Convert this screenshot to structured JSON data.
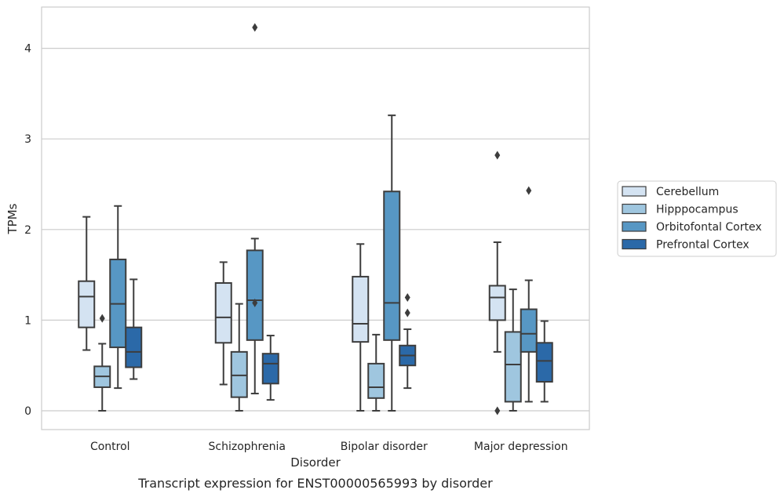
{
  "chart_data": {
    "type": "box",
    "title": "",
    "caption": "Transcript expression for ENST00000565993 by disorder",
    "xlabel": "Disorder",
    "ylabel": "TPMs",
    "ylim": [
      -0.2,
      4.45
    ],
    "yticks": [
      0,
      1,
      2,
      3,
      4
    ],
    "grid": "horizontal",
    "legend_position": "right",
    "categories": [
      "Control",
      "Schizophrenia",
      "Bipolar disorder",
      "Major depression"
    ],
    "series": [
      {
        "name": "Cerebellum",
        "color": "#d4e3f2",
        "boxes": [
          {
            "whisker_low": 0.67,
            "q1": 0.92,
            "median": 1.26,
            "q3": 1.43,
            "whisker_high": 2.14,
            "outliers": []
          },
          {
            "whisker_low": 0.29,
            "q1": 0.75,
            "median": 1.03,
            "q3": 1.41,
            "whisker_high": 1.64,
            "outliers": []
          },
          {
            "whisker_low": 0.0,
            "q1": 0.76,
            "median": 0.96,
            "q3": 1.48,
            "whisker_high": 1.84,
            "outliers": []
          },
          {
            "whisker_low": 0.65,
            "q1": 1.0,
            "median": 1.25,
            "q3": 1.38,
            "whisker_high": 1.86,
            "outliers": [
              2.82,
              0.0
            ]
          }
        ]
      },
      {
        "name": "Hipppocampus",
        "color": "#9fc6df",
        "boxes": [
          {
            "whisker_low": 0.0,
            "q1": 0.26,
            "median": 0.38,
            "q3": 0.49,
            "whisker_high": 0.74,
            "outliers": [
              1.02
            ]
          },
          {
            "whisker_low": 0.0,
            "q1": 0.15,
            "median": 0.39,
            "q3": 0.65,
            "whisker_high": 1.18,
            "outliers": []
          },
          {
            "whisker_low": 0.0,
            "q1": 0.14,
            "median": 0.26,
            "q3": 0.52,
            "whisker_high": 0.84,
            "outliers": []
          },
          {
            "whisker_low": 0.0,
            "q1": 0.1,
            "median": 0.51,
            "q3": 0.87,
            "whisker_high": 1.34,
            "outliers": []
          }
        ]
      },
      {
        "name": "Orbitofontal Cortex",
        "color": "#5797c4",
        "boxes": [
          {
            "whisker_low": 0.25,
            "q1": 0.7,
            "median": 1.18,
            "q3": 1.67,
            "whisker_high": 2.26,
            "outliers": []
          },
          {
            "whisker_low": 0.19,
            "q1": 0.78,
            "median": 1.22,
            "q3": 1.77,
            "whisker_high": 1.9,
            "outliers": [
              4.23,
              1.19
            ]
          },
          {
            "whisker_low": 0.0,
            "q1": 0.78,
            "median": 1.19,
            "q3": 2.42,
            "whisker_high": 3.26,
            "outliers": []
          },
          {
            "whisker_low": 0.1,
            "q1": 0.65,
            "median": 0.85,
            "q3": 1.12,
            "whisker_high": 1.44,
            "outliers": [
              2.43
            ]
          }
        ]
      },
      {
        "name": "Prefrontal Cortex",
        "color": "#2b69a8",
        "boxes": [
          {
            "whisker_low": 0.35,
            "q1": 0.48,
            "median": 0.65,
            "q3": 0.92,
            "whisker_high": 1.45,
            "outliers": []
          },
          {
            "whisker_low": 0.12,
            "q1": 0.3,
            "median": 0.52,
            "q3": 0.63,
            "whisker_high": 0.83,
            "outliers": []
          },
          {
            "whisker_low": 0.25,
            "q1": 0.5,
            "median": 0.61,
            "q3": 0.72,
            "whisker_high": 0.9,
            "outliers": [
              1.25,
              1.08
            ]
          },
          {
            "whisker_low": 0.1,
            "q1": 0.32,
            "median": 0.55,
            "q3": 0.75,
            "whisker_high": 0.99,
            "outliers": []
          }
        ]
      }
    ]
  }
}
